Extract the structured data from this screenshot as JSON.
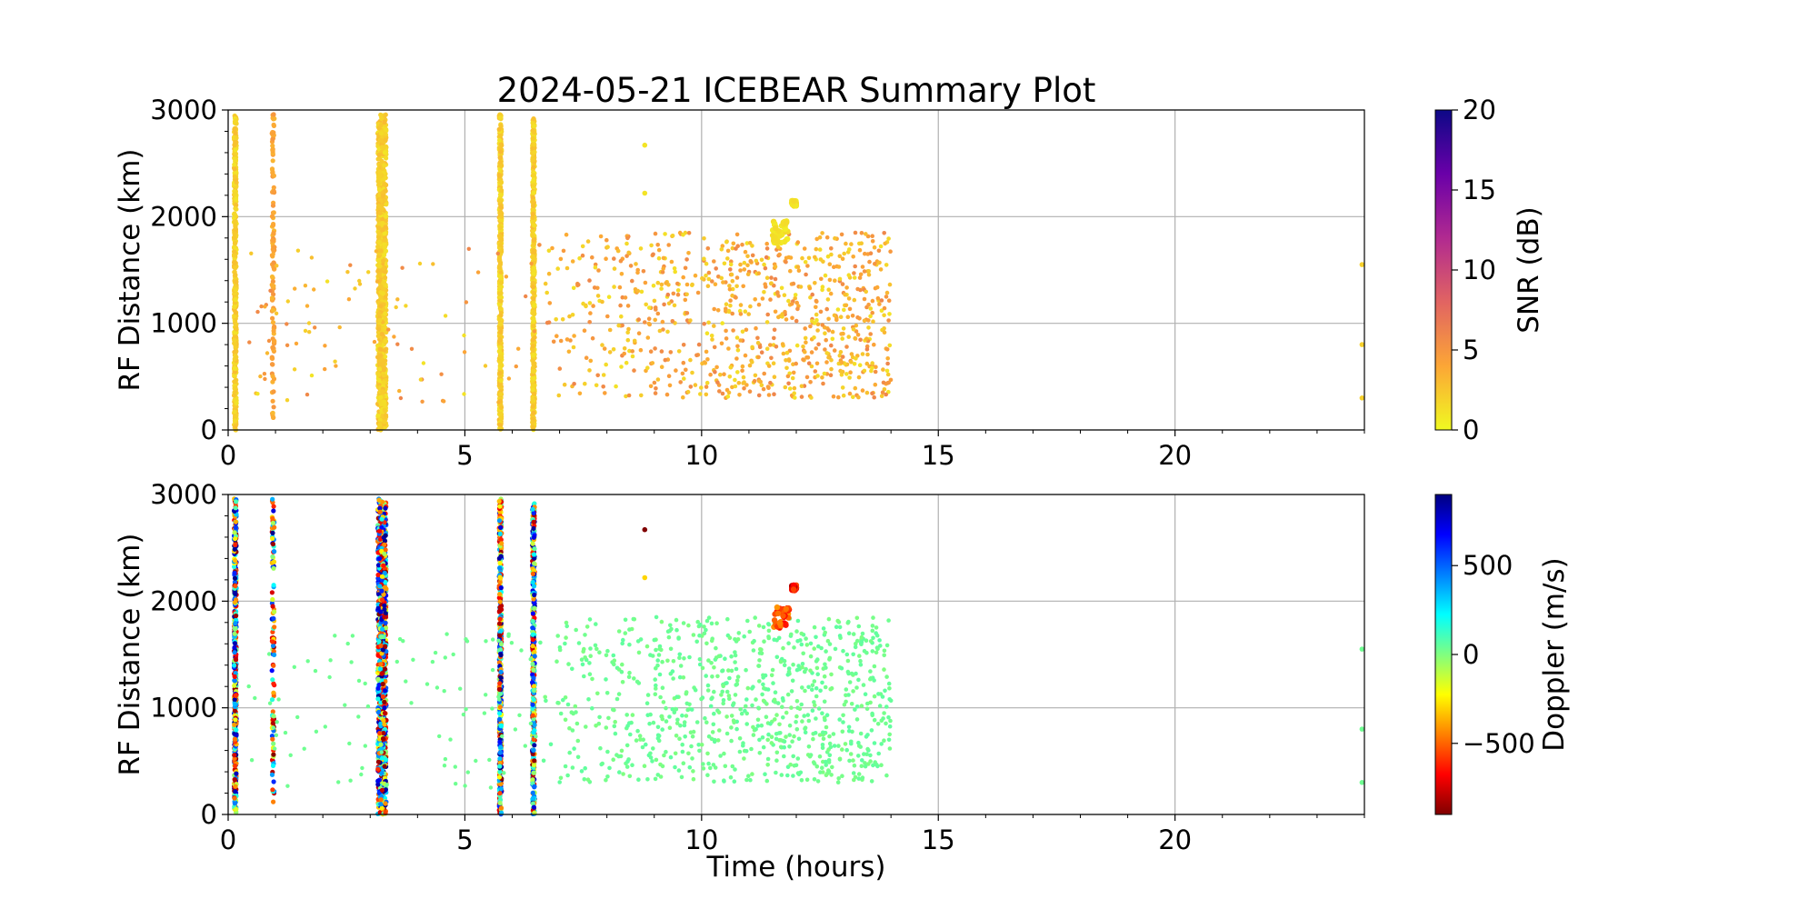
{
  "figure": {
    "title": "2024-05-21 ICEBEAR Summary Plot"
  },
  "chart_data": [
    {
      "type": "scatter",
      "panel": "snr",
      "title": "2024-05-21 ICEBEAR Summary Plot",
      "xlabel": "",
      "ylabel": "RF Distance (km)",
      "xlim": [
        0,
        24
      ],
      "ylim": [
        0,
        3000
      ],
      "x_ticks": [
        0,
        5,
        10,
        15,
        20
      ],
      "y_ticks": [
        0,
        1000,
        2000,
        3000
      ],
      "grid": true,
      "colorbar": {
        "label": "SNR (dB)",
        "range": [
          0,
          20
        ],
        "ticks": [
          0,
          5,
          10,
          15,
          20
        ],
        "colormap": "plasma_r",
        "colors": [
          "#f0f921",
          "#fca636",
          "#e16462",
          "#b12a90",
          "#6a00a8",
          "#0d0887"
        ]
      },
      "points_note": "dense vertical bands of echoes",
      "bands": [
        {
          "t": 0.15,
          "r": [
            0,
            2960
          ],
          "v": 1
        },
        {
          "t": 0.95,
          "r": [
            100,
            2960
          ],
          "v": 3
        },
        {
          "t": 3.25,
          "r": [
            0,
            2960
          ],
          "v": 1
        },
        {
          "t": 5.75,
          "r": [
            0,
            2960
          ],
          "v": 1
        },
        {
          "t": 6.45,
          "r": [
            0,
            2920
          ],
          "v": 1
        }
      ],
      "clusters": [
        {
          "t": [
            11.5,
            11.85
          ],
          "r": [
            1750,
            1960
          ],
          "v": 1
        },
        {
          "t": [
            11.9,
            12.0
          ],
          "r": [
            2100,
            2150
          ],
          "v": 1
        }
      ],
      "scatter_region": {
        "t": [
          6.5,
          14.0
        ],
        "r": [
          300,
          1850
        ],
        "v": [
          1,
          6
        ]
      },
      "sparse_points": [
        {
          "t": 23.95,
          "r": 1550,
          "v": 2
        },
        {
          "t": 23.95,
          "r": 800,
          "v": 2
        },
        {
          "t": 23.95,
          "r": 300,
          "v": 2
        },
        {
          "t": 8.8,
          "r": 2670,
          "v": 1
        },
        {
          "t": 8.8,
          "r": 2220,
          "v": 1
        }
      ]
    },
    {
      "type": "scatter",
      "panel": "doppler",
      "title": "",
      "xlabel": "Time (hours)",
      "ylabel": "RF Distance (km)",
      "xlim": [
        0,
        24
      ],
      "ylim": [
        0,
        3000
      ],
      "x_ticks": [
        0,
        5,
        10,
        15,
        20
      ],
      "y_ticks": [
        0,
        1000,
        2000,
        3000
      ],
      "grid": true,
      "colorbar": {
        "label": "Doppler (m/s)",
        "range": [
          -900,
          900
        ],
        "ticks": [
          -500,
          0,
          500
        ],
        "tick_labels": [
          "−500",
          "0",
          "500"
        ],
        "colormap": "jet_r",
        "colors": [
          "#800000",
          "#ff0000",
          "#ff8000",
          "#ffff00",
          "#80ff80",
          "#00ffff",
          "#0080ff",
          "#0000ff",
          "#000080"
        ]
      },
      "bands": [
        {
          "t": 0.15,
          "r": [
            0,
            2960
          ],
          "v": "mixed"
        },
        {
          "t": 0.95,
          "r": [
            100,
            2960
          ],
          "v": "mixed"
        },
        {
          "t": 3.25,
          "r": [
            0,
            2960
          ],
          "v": "mixed"
        },
        {
          "t": 5.75,
          "r": [
            0,
            2960
          ],
          "v": "mixed"
        },
        {
          "t": 6.45,
          "r": [
            0,
            2920
          ],
          "v": "mixed"
        }
      ],
      "clusters": [
        {
          "t": [
            11.5,
            11.85
          ],
          "r": [
            1750,
            1960
          ],
          "v": -550
        },
        {
          "t": [
            11.9,
            12.0
          ],
          "r": [
            2100,
            2150
          ],
          "v": -700
        }
      ],
      "scatter_region": {
        "t": [
          6.5,
          14.0
        ],
        "r": [
          300,
          1850
        ],
        "v": 30
      },
      "sparse_points": [
        {
          "t": 23.95,
          "r": 1550,
          "v": 30
        },
        {
          "t": 23.95,
          "r": 800,
          "v": 30
        },
        {
          "t": 23.95,
          "r": 300,
          "v": 30
        },
        {
          "t": 8.8,
          "r": 2670,
          "v": -900
        },
        {
          "t": 8.8,
          "r": 2220,
          "v": -300
        }
      ]
    }
  ]
}
